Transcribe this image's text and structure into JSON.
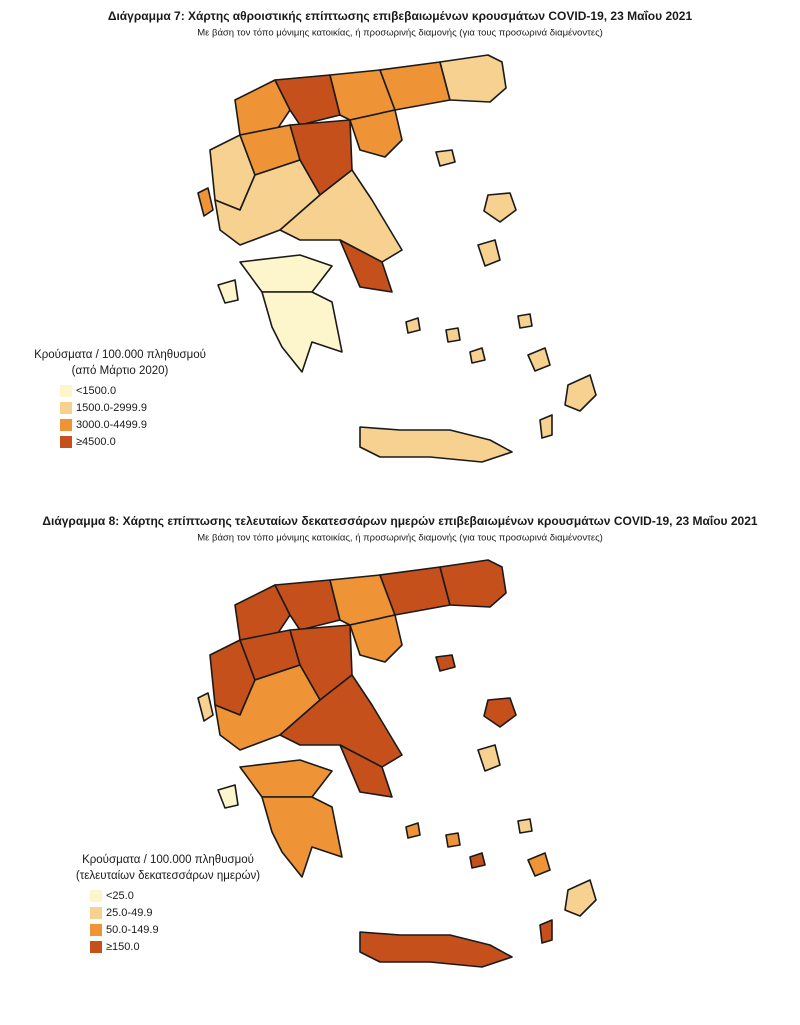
{
  "maps": [
    {
      "title": "Διάγραμμα 7: Χάρτης αθροιστικής επίπτωσης επιβεβαιωμένων κρουσμάτων COVID-19, 23 Μαΐου 2021",
      "subtitle": "Με βάση τον τόπο μόνιμης κατοικίας, ή προσωρινής διαμονής (για τους προσωρινά διαμένοντες)",
      "legend": {
        "title": "Κρούσματα / 100.000 πληθυσμού",
        "subtitle": "(από Μάρτιο 2020)",
        "items": [
          {
            "label": "<1500.0",
            "color": "#fdf6cc"
          },
          {
            "label": "1500.0-2999.9",
            "color": "#f7d18f"
          },
          {
            "label": "3000.0-4499.9",
            "color": "#ee9436"
          },
          {
            "label": "≥4500.0",
            "color": "#c5501b"
          }
        ]
      }
    },
    {
      "title": "Διάγραμμα 8: Χάρτης επίπτωσης τελευταίων δεκατεσσάρων ημερών επιβεβαιωμένων κρουσμάτων COVID-19, 23 Μαΐου 2021",
      "subtitle": "Με βάση τον τόπο μόνιμης κατοικίας, ή προσωρινής διαμονής (για τους προσωρινά διαμένοντες)",
      "legend": {
        "title": "Κρούσματα / 100.000 πληθυσμού",
        "subtitle": "(τελευταίων δεκατεσσάρων ημερών)",
        "items": [
          {
            "label": "<25.0",
            "color": "#fdf6cc"
          },
          {
            "label": "25.0-49.9",
            "color": "#f7d18f"
          },
          {
            "label": "50.0-149.9",
            "color": "#ee9436"
          },
          {
            "label": "≥150.0",
            "color": "#c5501b"
          }
        ]
      }
    }
  ]
}
